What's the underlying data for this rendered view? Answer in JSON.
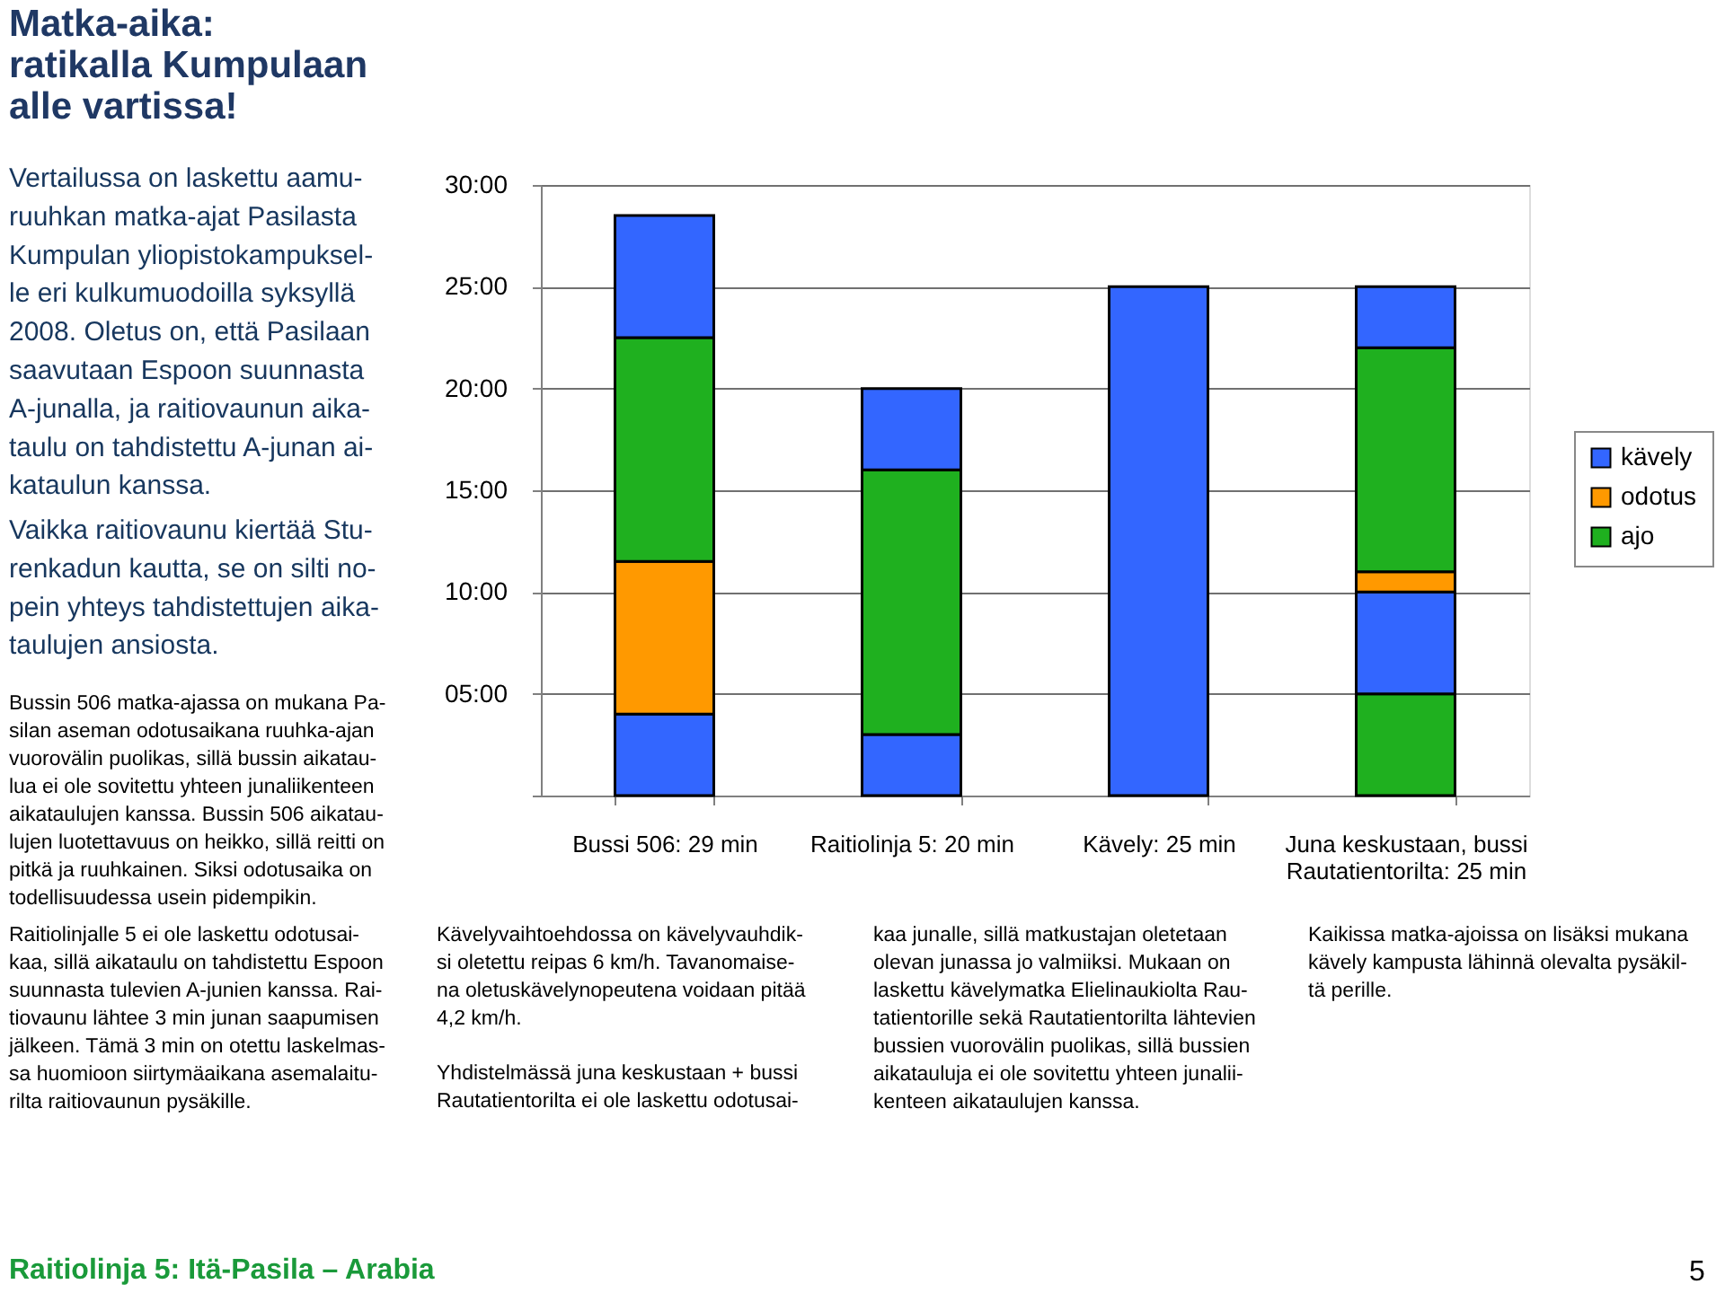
{
  "chart_data": {
    "type": "bar",
    "stacked": true,
    "title": "Matka-aika:\nratikalla Kumpulaan\nalle vartissa!",
    "categories": [
      "Bussi 506: 29 min",
      "Raitiolinja 5: 20 min",
      "Kävely: 25 min",
      "Juna keskustaan, bussi\nRautatientorilta: 25 min"
    ],
    "series": [
      {
        "name": "kävely",
        "color": "#3366ff",
        "values": [
          4,
          3,
          25,
          null
        ]
      },
      {
        "name": "odotus",
        "color": "#ff9900",
        "values": [
          7.5,
          null,
          null,
          null
        ]
      },
      {
        "name": "ajo",
        "color": "#1fb01f",
        "values": [
          11,
          13,
          null,
          5
        ]
      },
      {
        "color": "#3366ff",
        "values": [
          6,
          4,
          null,
          5
        ]
      },
      {
        "color": "#ff9900",
        "values": [
          null,
          null,
          null,
          1
        ]
      },
      {
        "color": "#1fb01f",
        "values": [
          null,
          null,
          null,
          11
        ]
      },
      {
        "color": "#3366ff",
        "values": [
          null,
          null,
          null,
          3
        ]
      }
    ],
    "ylim": [
      0,
      30
    ],
    "yticks": [
      {
        "value": 0,
        "label": null
      },
      {
        "value": 5,
        "label": "05:00"
      },
      {
        "value": 10,
        "label": "10:00"
      },
      {
        "value": 15,
        "label": "15:00"
      },
      {
        "value": 20,
        "label": "20:00"
      },
      {
        "value": 25,
        "label": "25:00"
      },
      {
        "value": 30,
        "label": "30:00"
      }
    ],
    "grid": "y",
    "legend": "right",
    "annotations": [
      "Vertailussa on laskettu aamu-\nruuhkan matka-ajat Pasilasta\nKumpulan yliopistokampuksel-\nle eri kulkumuodoilla syksyllä\n2008. Oletus on, että Pasilaan\nsaavutaan Espoon suunnasta\nA-junalla, ja raitiovaunun aika-\ntaulu on tahdistettu A-junan ai-\nkataulun kanssa.",
      "Vaikka raitiovaunu kiertää Stu-\nrenkadun kautta, se on silti no-\npein yhteys tahdistettujen aika-\ntaulujen ansiosta.",
      "Bussin 506 matka-ajassa on mukana Pa-\nsilan aseman odotusaikana ruuhka-ajan\nvuorovälin puolikas, sillä bussin aikatau-\nlua ei ole sovitettu yhteen junaliikenteen\naikataulujen kanssa. Bussin 506 aikatau-\nlujen luotettavuus on heikko, sillä reitti on\npitkä ja ruuhkainen. Siksi odotusaika on\ntodellisuudessa usein pidempikin.",
      "Raitiolinjalle 5 ei ole laskettu odotusai-\nkaa, sillä aikataulu on tahdistettu Espoon\nsuunnasta tulevien A-junien kanssa. Rai-\ntiovaunu lähtee 3 min junan saapumisen\njälkeen. Tämä 3 min on otettu laskelmas-\nsa huomioon siirtymäaikana asemalaitu-\nrilta raitiovaunun pysäkille.",
      "Kävelyvaihtoehdossa on kävelyvauhdik-\nsi oletettu reipas 6 km/h. Tavanomaise-\nna oletuskävelynopeutena voidaan pitää\n4,2 km/h.",
      "Yhdistelmässä juna keskustaan + bussi\nRautatientorilta ei ole laskettu odotusai-",
      "kaa junalle, sillä matkustajan oletetaan\nolevan junassa jo valmiiksi. Mukaan on\nlaskettu kävelymatka Elielinaukiolta Rau-\ntatientorille sekä Rautatientorilta lähtevien\nbussien vuorovälin puolikas, sillä bussien\naikatauluja ei ole sovitettu yhteen junalii-\nkenteen aikataulujen kanssa.",
      "Kaikissa matka-ajoissa on lisäksi mukana\nkävely kampusta lähinnä olevalta pysäkil-\ntä perille.",
      "Raitiolinja 5: Itä-Pasila – Arabia",
      "5"
    ]
  }
}
